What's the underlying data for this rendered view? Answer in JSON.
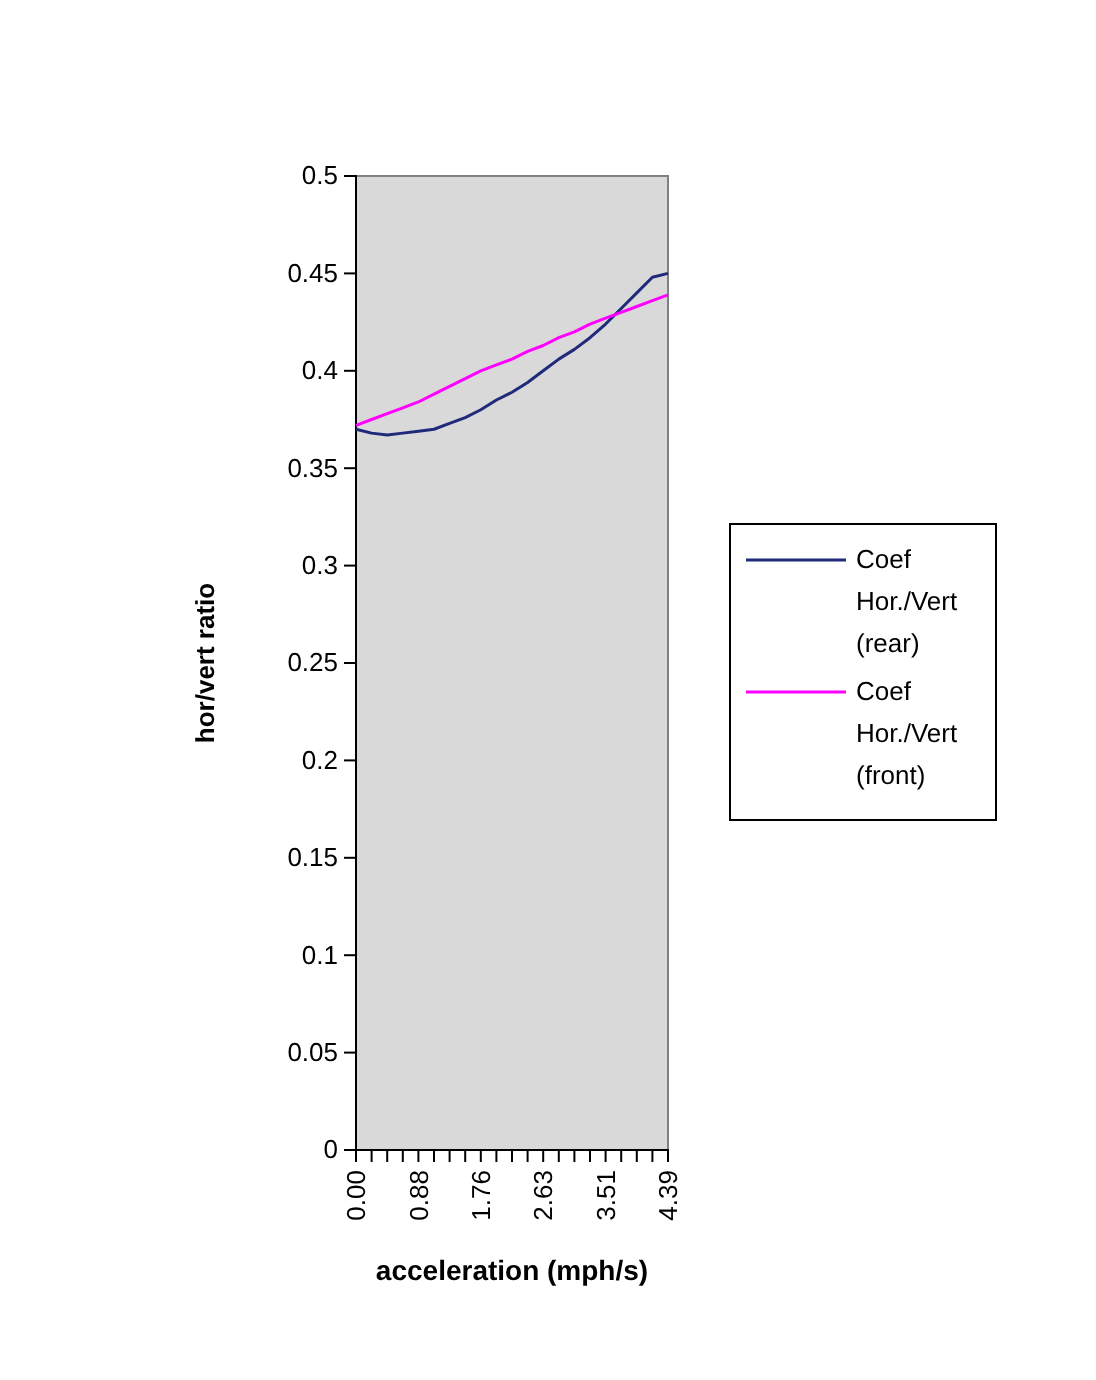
{
  "chart_data": {
    "type": "line",
    "xlabel": "acceleration (mph/s)",
    "ylabel": "hor/vert ratio",
    "categories": [
      "0.00",
      null,
      null,
      null,
      "0.88",
      null,
      null,
      null,
      "1.76",
      null,
      null,
      null,
      "2.63",
      null,
      null,
      null,
      "3.51",
      null,
      null,
      null,
      "4.39"
    ],
    "ylim": [
      0,
      0.5
    ],
    "yticks": [
      0,
      0.05,
      0.1,
      0.15,
      0.2,
      0.25,
      0.3,
      0.35,
      0.4,
      0.45,
      0.5
    ],
    "grid": false,
    "legend": "right",
    "marker": "none",
    "line_style": "solid",
    "series": [
      {
        "name": "Coef Hor./Vert (rear)",
        "color": "#1f2a7a",
        "values": [
          0.37,
          0.368,
          0.367,
          0.368,
          0.369,
          0.37,
          0.373,
          0.376,
          0.38,
          0.385,
          0.389,
          0.394,
          0.4,
          0.406,
          0.411,
          0.417,
          0.424,
          0.432,
          0.44,
          0.448,
          0.45
        ]
      },
      {
        "name": "Coef Hor./Vert (front)",
        "color": "#ff00ff",
        "values": [
          0.372,
          0.375,
          0.378,
          0.381,
          0.384,
          0.388,
          0.392,
          0.396,
          0.4,
          0.403,
          0.406,
          0.41,
          0.413,
          0.417,
          0.42,
          0.424,
          0.427,
          0.43,
          0.433,
          0.436,
          0.439
        ]
      }
    ]
  }
}
